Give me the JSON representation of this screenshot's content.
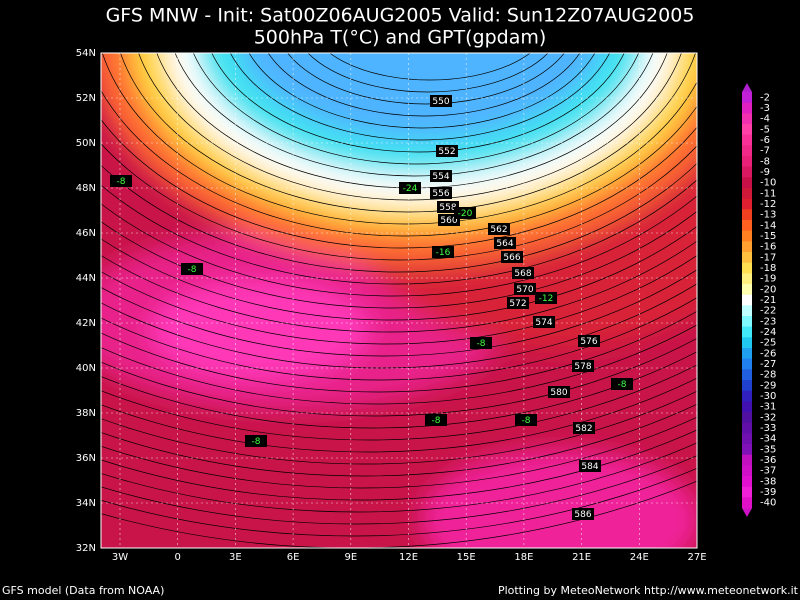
{
  "header": {
    "title": "GFS MNW - Init: Sat00Z06AUG2005 Valid: Sun12Z07AUG2005",
    "subtitle": "500hPa T(°C) and GPT(gpdam)"
  },
  "map": {
    "lon_labels": [
      "3W",
      "0",
      "3E",
      "6E",
      "9E",
      "12E",
      "15E",
      "18E",
      "21E",
      "24E",
      "27E"
    ],
    "lat_labels": [
      "54N",
      "52N",
      "50N",
      "48N",
      "46N",
      "44N",
      "42N",
      "40N",
      "38N",
      "36N",
      "34N",
      "32N"
    ],
    "height_labels": [
      550,
      552,
      554,
      556,
      558,
      560,
      562,
      564,
      566,
      568,
      570,
      572,
      574,
      576,
      578,
      580,
      582,
      584,
      586
    ],
    "temperature_labels": [
      -8,
      -24,
      -20,
      -16,
      -8,
      -12,
      -8,
      -8,
      -8,
      -8,
      -8
    ]
  },
  "colorbar": {
    "labels": [
      -2,
      -3,
      -4,
      -5,
      -6,
      -7,
      -8,
      -9,
      -10,
      -11,
      -12,
      -13,
      -14,
      -15,
      -16,
      -17,
      -18,
      -19,
      -20,
      -21,
      -22,
      -23,
      -24,
      -25,
      -26,
      -27,
      -28,
      -29,
      -30,
      -31,
      -32,
      -33,
      -34,
      -35,
      -36,
      -37,
      -38,
      -39,
      -40
    ]
  },
  "footer": {
    "source": "GFS model (Data from NOAA)",
    "credit": "Plotting by MeteoNetwork http://www.meteonetwork.it"
  }
}
